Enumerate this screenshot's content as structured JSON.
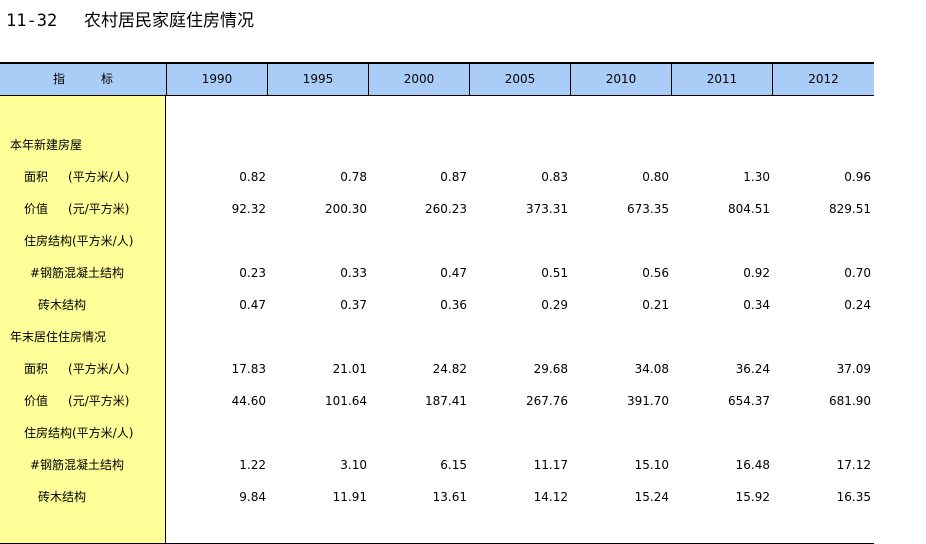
{
  "title": {
    "number": "11-32",
    "text": "农村居民家庭住房情况"
  },
  "header": {
    "indicator": "指　　　标",
    "years": [
      "1990",
      "1995",
      "2000",
      "2005",
      "2010",
      "2011",
      "2012"
    ]
  },
  "rows": [
    {
      "label": "本年新建房屋",
      "level": 0,
      "values": []
    },
    {
      "label": "面积",
      "unit": "(平方米/人)",
      "level": 1,
      "values": [
        "0.82",
        "0.78",
        "0.87",
        "0.83",
        "0.80",
        "1.30",
        "0.96"
      ]
    },
    {
      "label": "价值",
      "unit": "(元/平方米)",
      "level": 1,
      "values": [
        "92.32",
        "200.30",
        "260.23",
        "373.31",
        "673.35",
        "804.51",
        "829.51"
      ]
    },
    {
      "label": "住房结构(平方米/人)",
      "level": 1,
      "values": []
    },
    {
      "label": "#钢筋混凝土结构",
      "level": 2,
      "values": [
        "0.23",
        "0.33",
        "0.47",
        "0.51",
        "0.56",
        "0.92",
        "0.70"
      ]
    },
    {
      "label": "砖木结构",
      "level": 3,
      "values": [
        "0.47",
        "0.37",
        "0.36",
        "0.29",
        "0.21",
        "0.34",
        "0.24"
      ]
    },
    {
      "label": "年末居住住房情况",
      "level": 0,
      "values": []
    },
    {
      "label": "面积",
      "unit": "(平方米/人)",
      "level": 1,
      "values": [
        "17.83",
        "21.01",
        "24.82",
        "29.68",
        "34.08",
        "36.24",
        "37.09"
      ]
    },
    {
      "label": "价值",
      "unit": "(元/平方米)",
      "level": 1,
      "values": [
        "44.60",
        "101.64",
        "187.41",
        "267.76",
        "391.70",
        "654.37",
        "681.90"
      ]
    },
    {
      "label": "住房结构(平方米/人)",
      "level": 1,
      "values": []
    },
    {
      "label": "#钢筋混凝土结构",
      "level": 2,
      "values": [
        "1.22",
        "3.10",
        "6.15",
        "11.17",
        "15.10",
        "16.48",
        "17.12"
      ]
    },
    {
      "label": "砖木结构",
      "level": 3,
      "values": [
        "9.84",
        "11.91",
        "13.61",
        "14.12",
        "15.24",
        "15.92",
        "16.35"
      ]
    }
  ]
}
